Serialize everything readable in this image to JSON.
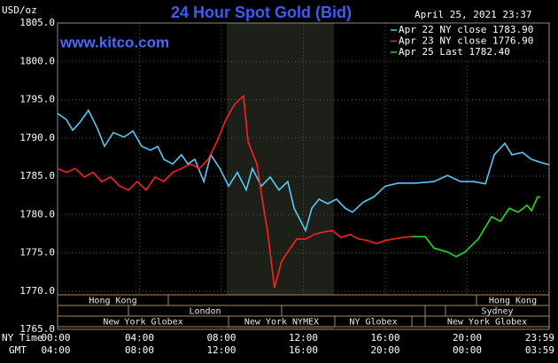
{
  "chart_data": {
    "type": "line",
    "title": "24 Hour Spot Gold (Bid)",
    "date_label": "April 25, 2021 23:37",
    "watermark": "www.kitco.com",
    "y_unit_label": "USD/oz",
    "x_row_label": "NY Time",
    "x2_row_label": "GMT",
    "grid": true,
    "xlim": [
      0,
      24
    ],
    "ylim": [
      1765,
      1805
    ],
    "xticks": [
      {
        "value": 0,
        "label": "00:00"
      },
      {
        "value": 4,
        "label": "04:00"
      },
      {
        "value": 8,
        "label": "08:00"
      },
      {
        "value": 12,
        "label": "12:00"
      },
      {
        "value": 16,
        "label": "16:00"
      },
      {
        "value": 20,
        "label": "20:00"
      },
      {
        "value": 23.98,
        "label": "23:59"
      }
    ],
    "x2_tick_labels": [
      "04:00",
      "08:00",
      "12:00",
      "16:00",
      "20:00",
      "00:00",
      "03:59"
    ],
    "yticks": [
      {
        "value": 1765,
        "label": "1765.0"
      },
      {
        "value": 1770,
        "label": "1770.0"
      },
      {
        "value": 1775,
        "label": "1775.0"
      },
      {
        "value": 1780,
        "label": "1780.0"
      },
      {
        "value": 1785,
        "label": "1785.0"
      },
      {
        "value": 1790,
        "label": "1790.0"
      },
      {
        "value": 1795,
        "label": "1795.0"
      },
      {
        "value": 1800,
        "label": "1800.0"
      },
      {
        "value": 1805,
        "label": "1805.0"
      }
    ],
    "series": [
      {
        "name": "Apr 22 NY close 1783.90",
        "color": "#5bc8f5",
        "x": [
          0,
          0.43,
          0.74,
          1.08,
          1.51,
          1.95,
          2.29,
          2.72,
          3.24,
          3.68,
          4.11,
          4.54,
          4.89,
          5.19,
          5.62,
          6.05,
          6.36,
          6.7,
          7.14,
          7.48,
          7.92,
          8.35,
          8.78,
          9.21,
          9.51,
          9.95,
          10.38,
          10.81,
          11.24,
          11.55,
          12.11,
          12.41,
          12.76,
          13.19,
          13.62,
          14.05,
          14.4,
          14.92,
          15.44,
          16.0,
          16.65,
          17.51,
          18.38,
          19.03,
          19.68,
          20.32,
          20.89,
          21.32,
          21.84,
          22.18,
          22.7,
          23.14,
          23.57,
          24.0
        ],
        "values": [
          1793.2,
          1792.4,
          1791.0,
          1792.0,
          1793.6,
          1791.2,
          1788.9,
          1790.7,
          1790.1,
          1790.9,
          1788.9,
          1788.4,
          1788.9,
          1787.2,
          1786.6,
          1787.8,
          1786.6,
          1787.2,
          1784.3,
          1787.8,
          1786.0,
          1783.7,
          1785.5,
          1783.2,
          1786.0,
          1783.7,
          1784.9,
          1783.2,
          1784.3,
          1780.8,
          1777.9,
          1780.8,
          1782.0,
          1781.4,
          1782.0,
          1780.8,
          1780.3,
          1781.6,
          1782.3,
          1783.7,
          1784.1,
          1784.1,
          1784.3,
          1785.1,
          1784.3,
          1784.3,
          1784.0,
          1787.8,
          1789.3,
          1787.8,
          1788.1,
          1787.2,
          1786.8,
          1786.5
        ]
      },
      {
        "name": "Apr 23 NY close 1776.90",
        "color": "#ff2020",
        "x": [
          0,
          0.43,
          0.86,
          1.3,
          1.73,
          2.16,
          2.59,
          3.03,
          3.46,
          3.89,
          4.32,
          4.76,
          5.19,
          5.62,
          6.05,
          6.49,
          6.92,
          7.35,
          7.78,
          8.22,
          8.65,
          9.08,
          9.3,
          9.73,
          10.03,
          10.25,
          10.59,
          10.94,
          11.24,
          11.68,
          12.11,
          12.54,
          12.97,
          13.41,
          13.84,
          14.27,
          14.7,
          15.14,
          15.57,
          16.0,
          16.43,
          16.86,
          17.3
        ],
        "values": [
          1786.0,
          1785.5,
          1786.0,
          1784.9,
          1785.5,
          1784.3,
          1784.9,
          1783.7,
          1783.2,
          1784.3,
          1783.2,
          1784.9,
          1784.3,
          1785.5,
          1786.0,
          1786.6,
          1786.0,
          1787.2,
          1789.5,
          1792.4,
          1794.4,
          1795.5,
          1789.5,
          1786.6,
          1781.4,
          1777.9,
          1770.4,
          1773.9,
          1775.1,
          1776.8,
          1776.8,
          1777.4,
          1777.7,
          1777.9,
          1777.0,
          1777.4,
          1776.8,
          1776.6,
          1776.2,
          1776.6,
          1776.8,
          1777.0,
          1777.1
        ]
      },
      {
        "name": "Apr 25 Last 1782.40",
        "color": "#20e020",
        "x": [
          17.3,
          17.95,
          18.38,
          19.03,
          19.46,
          19.89,
          20.54,
          21.19,
          21.62,
          22.05,
          22.49,
          22.92,
          23.14,
          23.44,
          23.57
        ],
        "values": [
          1777.1,
          1777.1,
          1775.6,
          1775.1,
          1774.5,
          1775.1,
          1776.8,
          1779.7,
          1779.1,
          1780.8,
          1780.3,
          1781.2,
          1780.5,
          1782.3,
          1782.3
        ]
      }
    ],
    "sessions": [
      "Hong Kong",
      "Hong Kong",
      "London",
      "Sydney",
      "New York Globex",
      "New York NYMEX",
      "NY Globex",
      "New York Globex"
    ]
  }
}
